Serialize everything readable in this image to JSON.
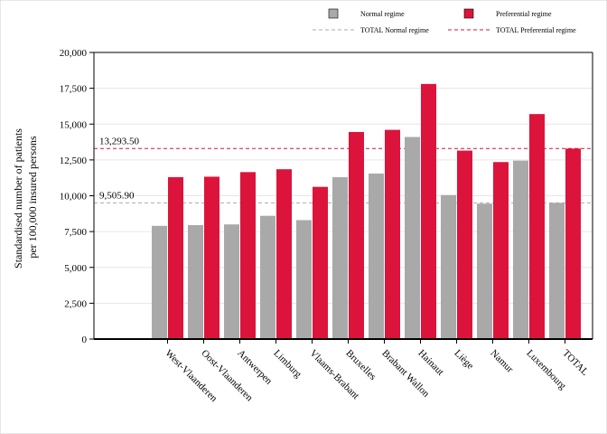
{
  "chart_data": {
    "type": "bar",
    "title": "",
    "xlabel": "",
    "ylabel_lines": [
      "Standardised number of patients",
      "per 100,000 insured persons"
    ],
    "ylim": [
      0,
      20000
    ],
    "yticks": [
      "0",
      "2,500",
      "5,000",
      "7,500",
      "10,000",
      "12,500",
      "15,000",
      "17,500",
      "20,000"
    ],
    "ytick_values": [
      0,
      2500,
      5000,
      7500,
      10000,
      12500,
      15000,
      17500,
      20000
    ],
    "grid": true,
    "legend_position": "top",
    "categories": [
      "West-Vlaanderen",
      "Oost-Vlaanderen",
      "Antwerpen",
      "Limburg",
      "Vlaams-Brabant",
      "Bruxelles",
      "Brabant Wallon",
      "Hainaut",
      "Liège",
      "Namur",
      "Luxembourg",
      "TOTAL"
    ],
    "series": [
      {
        "name": "Normal regime",
        "color": "#a9a9a9",
        "values": [
          7900,
          7950,
          8000,
          8600,
          8300,
          11300,
          11550,
          14100,
          10050,
          9450,
          12450,
          9505.9
        ]
      },
      {
        "name": "Preferential regime",
        "color": "#dc143c",
        "values": [
          11300,
          11330,
          11650,
          11850,
          10620,
          14450,
          14600,
          17800,
          13150,
          12350,
          15700,
          13293.5
        ]
      }
    ],
    "reference_lines": [
      {
        "name": "TOTAL Normal regime",
        "value": 9505.9,
        "label": "9,505.90",
        "color": "#a9a9a9"
      },
      {
        "name": "TOTAL Preferential regime",
        "value": 13293.5,
        "label": "13,293.50",
        "color": "#dc143c"
      }
    ]
  }
}
